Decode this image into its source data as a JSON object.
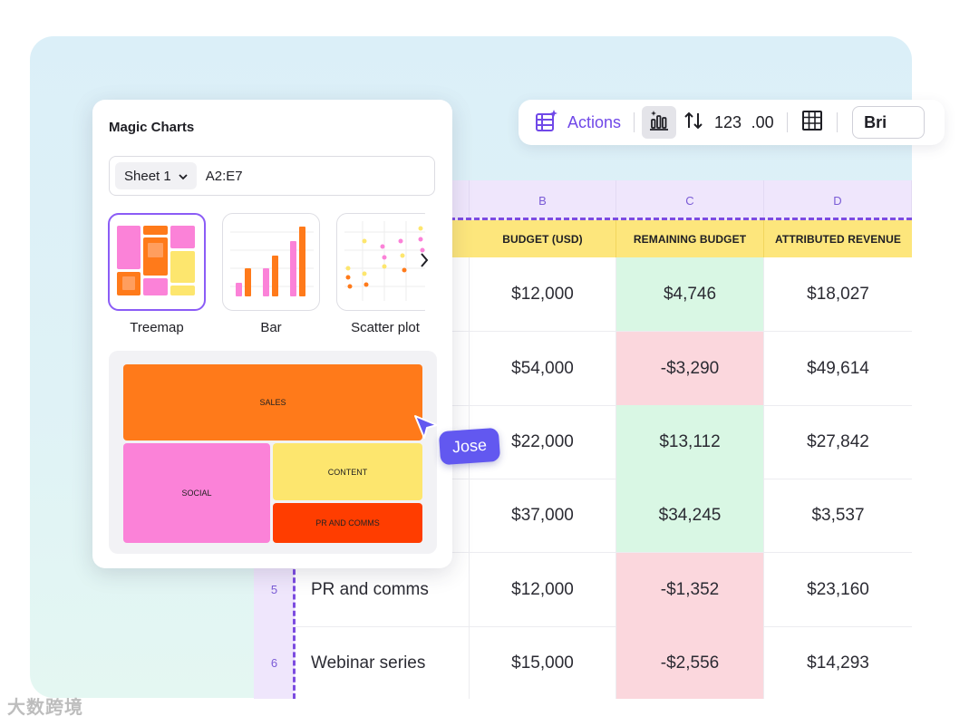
{
  "toolbar": {
    "actions_label": "Actions",
    "number_format_label": "123",
    "decimal_label": ".00",
    "font_label": "Bri"
  },
  "sheet": {
    "columns": [
      "B",
      "C",
      "D"
    ],
    "fields": [
      "BUDGET (USD)",
      "REMAINING BUDGET",
      "ATTRIBUTED REVENUE"
    ],
    "rows": [
      {
        "num": "",
        "name": "",
        "budget": "$12,000",
        "remaining": "$4,746",
        "status": "positive",
        "revenue": "$18,027"
      },
      {
        "num": "",
        "name": "",
        "budget": "$54,000",
        "remaining": "-$3,290",
        "status": "negative",
        "revenue": "$49,614"
      },
      {
        "num": "",
        "name": "",
        "budget": "$22,000",
        "remaining": "$13,112",
        "status": "positive",
        "revenue": "$27,842"
      },
      {
        "num": "",
        "name": "",
        "budget": "$37,000",
        "remaining": "$34,245",
        "status": "positive",
        "revenue": "$3,537"
      },
      {
        "num": "5",
        "name": "PR and comms",
        "budget": "$12,000",
        "remaining": "-$1,352",
        "status": "negative",
        "revenue": "$23,160"
      },
      {
        "num": "6",
        "name": "Webinar series",
        "budget": "$15,000",
        "remaining": "-$2,556",
        "status": "negative",
        "revenue": "$14,293"
      }
    ]
  },
  "panel": {
    "title": "Magic Charts",
    "sheet_select": "Sheet 1",
    "range": "A2:E7",
    "chart_types": [
      "Treemap",
      "Bar",
      "Scatter plot"
    ],
    "treemap_labels": {
      "sales": "SALES",
      "social": "SOCIAL",
      "content": "CONTENT",
      "pr": "PR AND COMMS"
    }
  },
  "cursor": {
    "name": "Jose"
  },
  "colors": {
    "accent": "#7048e8",
    "positive": "#d9f7e4",
    "negative": "#fbd7dd",
    "header": "#fde67c"
  },
  "watermark": "大数跨境"
}
